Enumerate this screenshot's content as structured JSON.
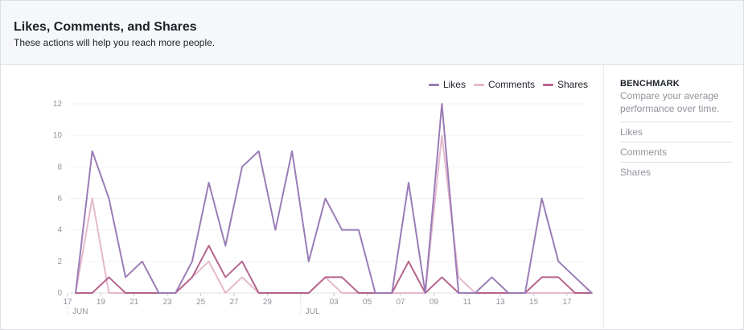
{
  "header": {
    "title": "Likes, Comments, and Shares",
    "subtitle": "These actions will help you reach more people."
  },
  "benchmark": {
    "title": "BENCHMARK",
    "description": "Compare your average performance over time.",
    "items": [
      "Likes",
      "Comments",
      "Shares"
    ]
  },
  "chart_data": {
    "type": "line",
    "x": [
      "17",
      "18",
      "19",
      "20",
      "21",
      "22",
      "23",
      "24",
      "25",
      "26",
      "27",
      "28",
      "29",
      "30",
      "01",
      "02",
      "03",
      "04",
      "05",
      "06",
      "07",
      "08",
      "09",
      "10",
      "11",
      "12",
      "13",
      "14",
      "15",
      "16",
      "17",
      "18"
    ],
    "x_tick_labels": [
      "17",
      "19",
      "21",
      "23",
      "25",
      "27",
      "29",
      "03",
      "05",
      "07",
      "09",
      "11",
      "13",
      "15",
      "17"
    ],
    "month_labels": [
      "JUN",
      "JUL"
    ],
    "ylim": [
      0,
      12
    ],
    "y_ticks": [
      0,
      2,
      4,
      6,
      8,
      10,
      12
    ],
    "grid": true,
    "legend_position": "top-right",
    "series": [
      {
        "name": "Likes",
        "color": "#9b7cb6",
        "values": [
          0,
          9,
          6,
          1,
          2,
          0,
          0,
          2,
          7,
          3,
          8,
          9,
          4,
          9,
          2,
          6,
          4,
          4,
          0,
          0,
          7,
          0,
          12,
          0,
          0,
          1,
          0,
          0,
          6,
          2,
          1,
          0
        ]
      },
      {
        "name": "Comments",
        "color": "#e5b9cc",
        "values": [
          0,
          6,
          0,
          0,
          0,
          0,
          0,
          1,
          2,
          0,
          1,
          0,
          0,
          0,
          0,
          1,
          0,
          0,
          0,
          0,
          0,
          0,
          10,
          1,
          0,
          0,
          0,
          0,
          0,
          0,
          0,
          0
        ]
      },
      {
        "name": "Shares",
        "color": "#b5648e",
        "values": [
          0,
          0,
          1,
          0,
          0,
          0,
          0,
          1,
          3,
          1,
          2,
          0,
          0,
          0,
          0,
          1,
          1,
          0,
          0,
          0,
          2,
          0,
          1,
          0,
          0,
          0,
          0,
          0,
          1,
          1,
          0,
          0
        ]
      }
    ]
  }
}
